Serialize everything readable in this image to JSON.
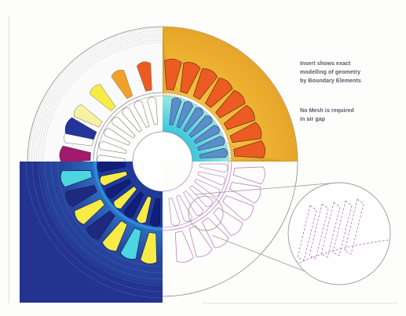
{
  "annotations": {
    "note_1": "Insert shows exact\nmodelling of geometry\nby Boundary Elements",
    "note_2": "No Mesh is required\nin air gap"
  },
  "colors": {
    "page_background": "#fdfdfb",
    "field_amber": "#f0b638",
    "field_navy": "#24338f",
    "field_cyan": "#4cd6df",
    "field_yellow": "#f3ee3a",
    "slot_orange": "#ec5b21",
    "slot_magenta": "#a3196b",
    "slot_blue": "#23359a",
    "slot_yellow": "#f6ec45",
    "mesh_magenta": "#b070c0",
    "outline_gray": "#8a8a8a"
  },
  "icons": [
    "motor-cross-section-diagram",
    "magnified-slot-detail"
  ]
}
